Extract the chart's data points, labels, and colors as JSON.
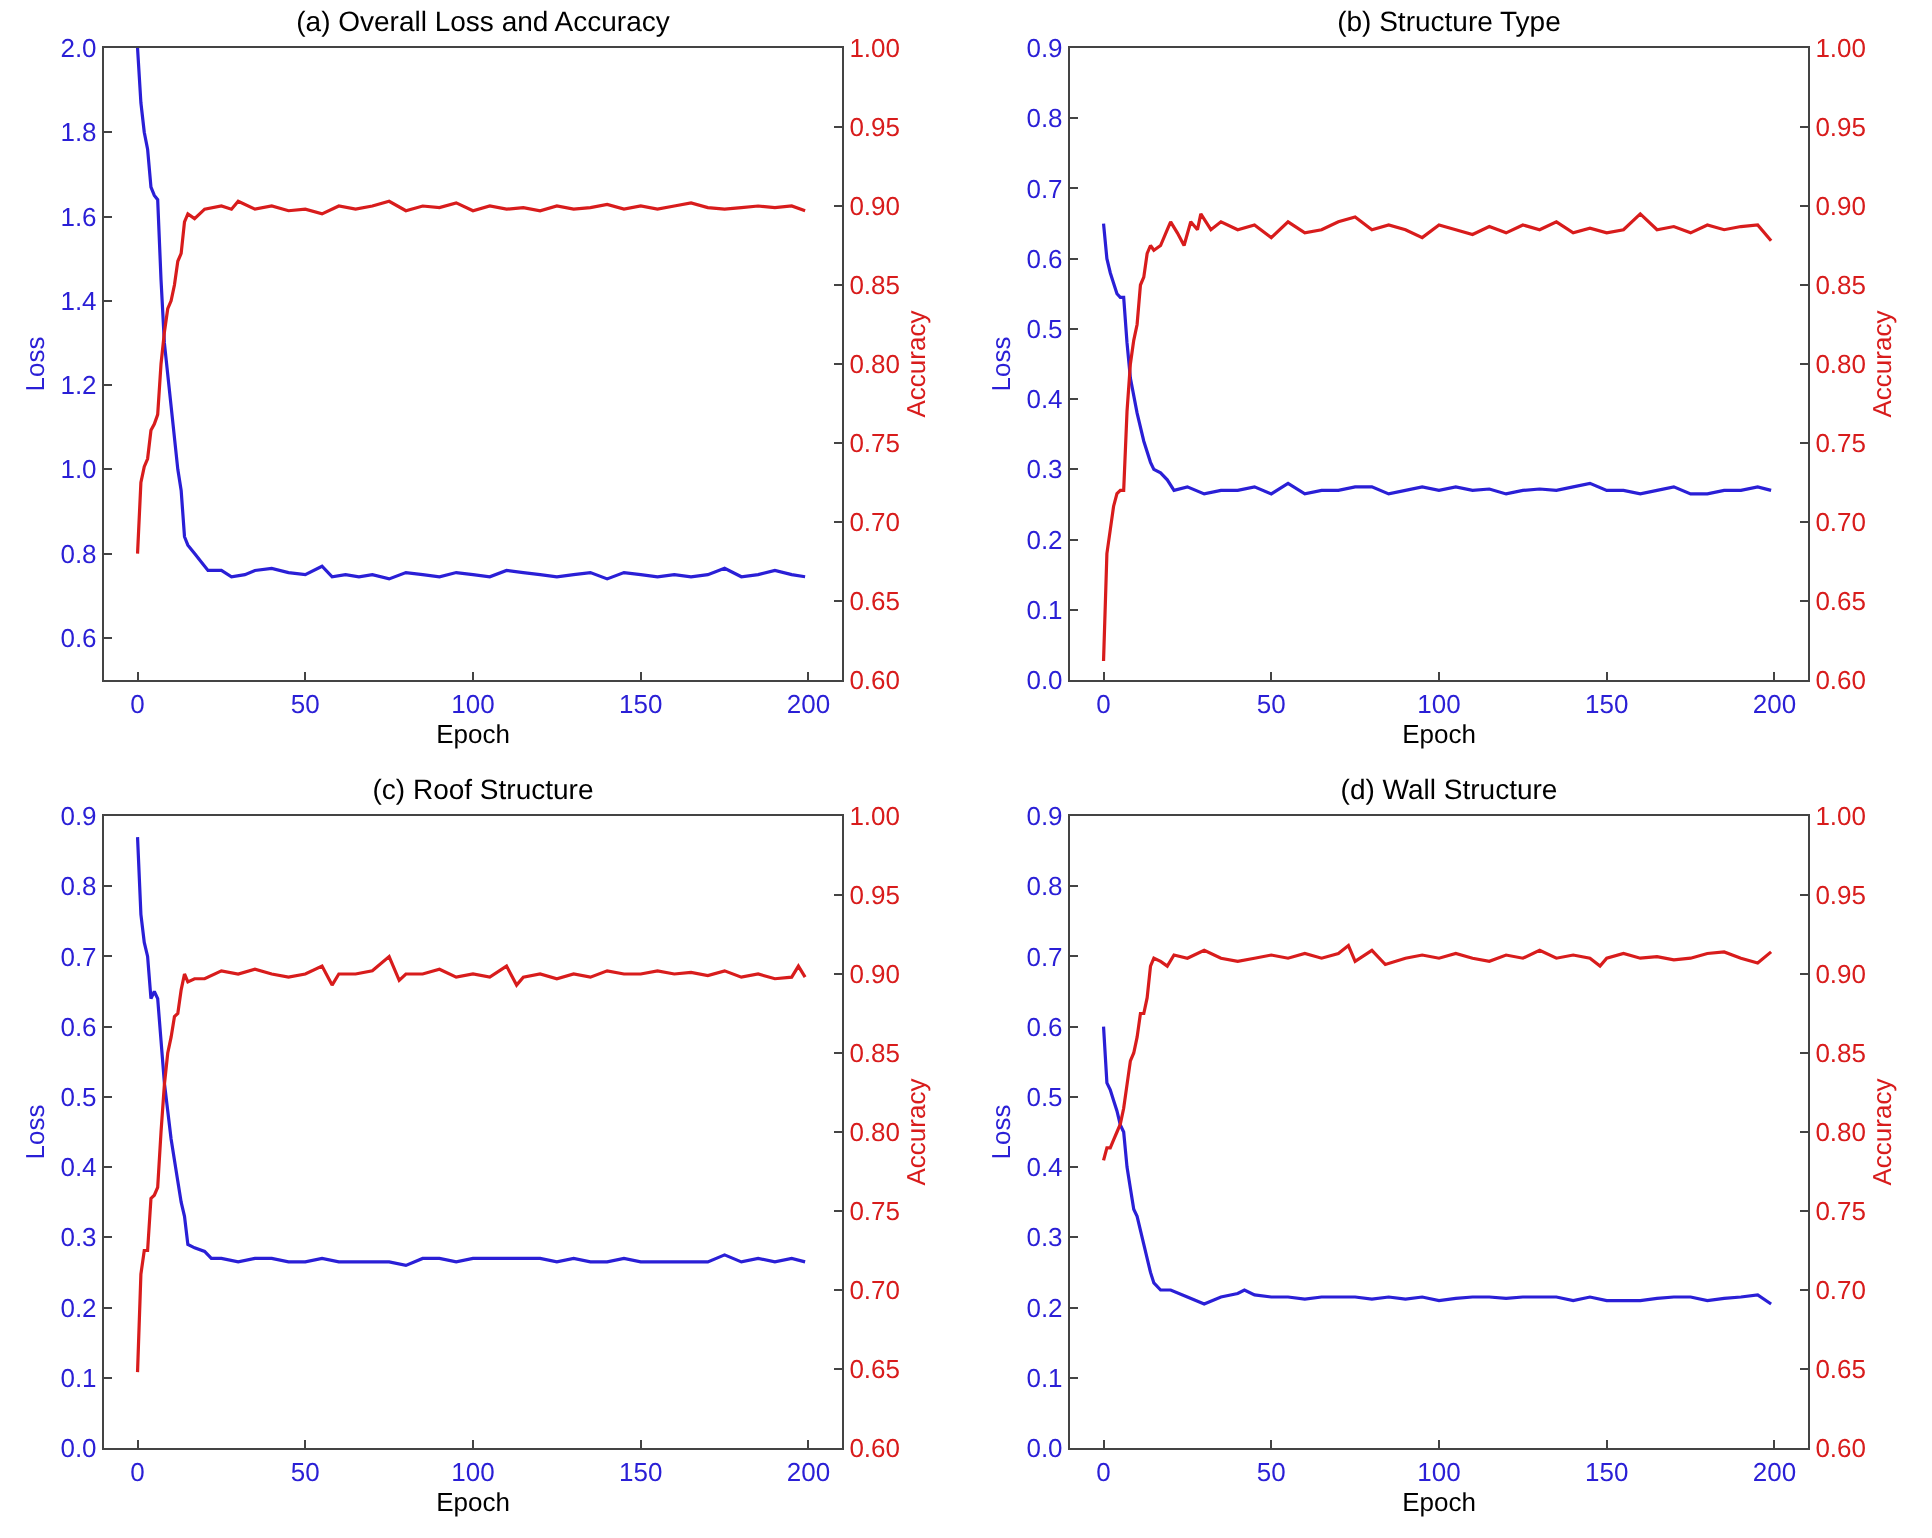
{
  "chart_data": [
    {
      "type": "line",
      "title": "(a) Overall Loss and Accuracy",
      "xlabel": "Epoch",
      "ylabel": "Loss",
      "y2label": "Accuracy",
      "xlim": [
        -10,
        210
      ],
      "xticks": [
        0,
        50,
        100,
        150,
        200
      ],
      "ylim": [
        0.5,
        2.0
      ],
      "yticks": [
        {
          "value": 0.6,
          "label": "0.6"
        },
        {
          "value": 0.8,
          "label": "0.8"
        },
        {
          "value": 1.0,
          "label": "1.0"
        },
        {
          "value": 1.2,
          "label": "1.2"
        },
        {
          "value": 1.4,
          "label": "1.4"
        },
        {
          "value": 1.6,
          "label": "1.6"
        },
        {
          "value": 1.8,
          "label": "1.8"
        },
        {
          "value": 2.0,
          "label": "2.0"
        }
      ],
      "y2lim": [
        0.6,
        1.0
      ],
      "y2ticks": [
        {
          "value": 0.6,
          "label": "0.60"
        },
        {
          "value": 0.65,
          "label": "0.65"
        },
        {
          "value": 0.7,
          "label": "0.70"
        },
        {
          "value": 0.75,
          "label": "0.75"
        },
        {
          "value": 0.8,
          "label": "0.80"
        },
        {
          "value": 0.85,
          "label": "0.85"
        },
        {
          "value": 0.9,
          "label": "0.90"
        },
        {
          "value": 0.95,
          "label": "0.95"
        },
        {
          "value": 1.0,
          "label": "1.00"
        }
      ],
      "series": [
        {
          "color": "#2a1fd6",
          "x": [
            0,
            1,
            2,
            3,
            4,
            5,
            6,
            7,
            8,
            10,
            12,
            13,
            14,
            15,
            17,
            19,
            21,
            25,
            28,
            32,
            35,
            40,
            45,
            50,
            55,
            58,
            62,
            66,
            70,
            75,
            80,
            85,
            90,
            95,
            100,
            105,
            110,
            115,
            120,
            125,
            130,
            135,
            140,
            145,
            150,
            155,
            160,
            165,
            170,
            175,
            180,
            185,
            190,
            195,
            199
          ],
          "values": [
            2.0,
            1.87,
            1.8,
            1.76,
            1.67,
            1.65,
            1.64,
            1.45,
            1.3,
            1.15,
            1.0,
            0.95,
            0.84,
            0.82,
            0.8,
            0.78,
            0.76,
            0.76,
            0.745,
            0.75,
            0.76,
            0.765,
            0.755,
            0.75,
            0.77,
            0.745,
            0.75,
            0.745,
            0.75,
            0.74,
            0.755,
            0.75,
            0.745,
            0.755,
            0.75,
            0.745,
            0.76,
            0.755,
            0.75,
            0.745,
            0.75,
            0.755,
            0.74,
            0.755,
            0.75,
            0.745,
            0.75,
            0.745,
            0.75,
            0.765,
            0.745,
            0.75,
            0.76,
            0.75,
            0.745
          ]
        },
        {
          "color": "#d81c1c",
          "axis": "y2",
          "x": [
            0,
            1,
            2,
            3,
            4,
            5,
            6,
            7,
            8,
            9,
            10,
            11,
            12,
            13,
            14,
            15,
            17,
            20,
            25,
            28,
            30,
            35,
            40,
            45,
            50,
            55,
            60,
            65,
            70,
            75,
            80,
            85,
            90,
            95,
            100,
            105,
            110,
            115,
            120,
            125,
            130,
            135,
            140,
            145,
            150,
            155,
            160,
            165,
            170,
            175,
            180,
            185,
            190,
            195,
            199
          ],
          "values": [
            0.68,
            0.725,
            0.735,
            0.74,
            0.758,
            0.762,
            0.768,
            0.8,
            0.82,
            0.835,
            0.84,
            0.85,
            0.865,
            0.87,
            0.89,
            0.895,
            0.892,
            0.898,
            0.9,
            0.898,
            0.903,
            0.898,
            0.9,
            0.897,
            0.898,
            0.895,
            0.9,
            0.898,
            0.9,
            0.903,
            0.897,
            0.9,
            0.899,
            0.902,
            0.897,
            0.9,
            0.898,
            0.899,
            0.897,
            0.9,
            0.898,
            0.899,
            0.901,
            0.898,
            0.9,
            0.898,
            0.9,
            0.902,
            0.899,
            0.898,
            0.899,
            0.9,
            0.899,
            0.9,
            0.897
          ]
        }
      ]
    },
    {
      "type": "line",
      "title": "(b) Structure Type",
      "xlabel": "Epoch",
      "ylabel": "Loss",
      "y2label": "Accuracy",
      "xlim": [
        -10,
        210
      ],
      "xticks": [
        0,
        50,
        100,
        150,
        200
      ],
      "ylim": [
        0,
        0.9
      ],
      "yticks": [
        {
          "value": 0,
          "label": "0.0"
        },
        0.1,
        0.2,
        0.3,
        0.4,
        0.5,
        0.6,
        0.7,
        0.8,
        0.9
      ],
      "y2lim": [
        0.6,
        1.0
      ],
      "y2ticks": [
        {
          "value": 0.6,
          "label": "0.60"
        },
        {
          "value": 0.65,
          "label": "0.65"
        },
        {
          "value": 0.7,
          "label": "0.70"
        },
        {
          "value": 0.75,
          "label": "0.75"
        },
        {
          "value": 0.8,
          "label": "0.80"
        },
        {
          "value": 0.85,
          "label": "0.85"
        },
        {
          "value": 0.9,
          "label": "0.90"
        },
        {
          "value": 0.95,
          "label": "0.95"
        },
        {
          "value": 1.0,
          "label": "1.00"
        }
      ],
      "series": [
        {
          "color": "#2a1fd6",
          "x": [
            0,
            1,
            2,
            3,
            4,
            5,
            6,
            7,
            8,
            10,
            12,
            14,
            15,
            17,
            19,
            21,
            25,
            30,
            35,
            40,
            45,
            50,
            55,
            60,
            65,
            70,
            75,
            80,
            85,
            90,
            95,
            100,
            105,
            110,
            115,
            120,
            125,
            130,
            135,
            140,
            145,
            150,
            155,
            160,
            165,
            170,
            175,
            180,
            185,
            190,
            195,
            199
          ],
          "values": [
            0.65,
            0.6,
            0.58,
            0.565,
            0.55,
            0.545,
            0.545,
            0.48,
            0.43,
            0.38,
            0.34,
            0.31,
            0.3,
            0.295,
            0.285,
            0.27,
            0.275,
            0.265,
            0.27,
            0.27,
            0.275,
            0.265,
            0.28,
            0.265,
            0.27,
            0.27,
            0.275,
            0.275,
            0.265,
            0.27,
            0.275,
            0.27,
            0.275,
            0.27,
            0.272,
            0.265,
            0.27,
            0.272,
            0.27,
            0.275,
            0.28,
            0.27,
            0.27,
            0.265,
            0.27,
            0.275,
            0.265,
            0.265,
            0.27,
            0.27,
            0.275,
            0.27
          ]
        },
        {
          "color": "#d81c1c",
          "axis": "y2",
          "x": [
            0,
            1,
            2,
            3,
            4,
            5,
            6,
            7,
            8,
            9,
            10,
            11,
            12,
            13,
            14,
            15,
            17,
            19,
            20,
            22,
            24,
            26,
            28,
            29,
            32,
            35,
            40,
            45,
            50,
            55,
            60,
            65,
            70,
            75,
            80,
            85,
            90,
            95,
            100,
            105,
            110,
            115,
            120,
            125,
            130,
            135,
            140,
            145,
            150,
            155,
            160,
            165,
            170,
            175,
            180,
            185,
            190,
            195,
            199
          ],
          "values": [
            0.612,
            0.68,
            0.695,
            0.71,
            0.718,
            0.72,
            0.72,
            0.77,
            0.8,
            0.815,
            0.825,
            0.85,
            0.855,
            0.87,
            0.875,
            0.872,
            0.875,
            0.885,
            0.89,
            0.883,
            0.875,
            0.89,
            0.885,
            0.895,
            0.885,
            0.89,
            0.885,
            0.888,
            0.88,
            0.89,
            0.883,
            0.885,
            0.89,
            0.893,
            0.885,
            0.888,
            0.885,
            0.88,
            0.888,
            0.885,
            0.882,
            0.887,
            0.883,
            0.888,
            0.885,
            0.89,
            0.883,
            0.886,
            0.883,
            0.885,
            0.895,
            0.885,
            0.887,
            0.883,
            0.888,
            0.885,
            0.887,
            0.888,
            0.878
          ]
        }
      ]
    },
    {
      "type": "line",
      "title": "(c) Roof Structure",
      "xlabel": "Epoch",
      "ylabel": "Loss",
      "y2label": "Accuracy",
      "xlim": [
        -10,
        210
      ],
      "xticks": [
        0,
        50,
        100,
        150,
        200
      ],
      "ylim": [
        0,
        0.9
      ],
      "yticks": [
        {
          "value": 0,
          "label": "0.0"
        },
        0.1,
        0.2,
        0.3,
        0.4,
        0.5,
        0.6,
        0.7,
        0.8,
        0.9
      ],
      "y2lim": [
        0.6,
        1.0
      ],
      "y2ticks": [
        {
          "value": 0.6,
          "label": "0.60"
        },
        {
          "value": 0.65,
          "label": "0.65"
        },
        {
          "value": 0.7,
          "label": "0.70"
        },
        {
          "value": 0.75,
          "label": "0.75"
        },
        {
          "value": 0.8,
          "label": "0.80"
        },
        {
          "value": 0.85,
          "label": "0.85"
        },
        {
          "value": 0.9,
          "label": "0.90"
        },
        {
          "value": 0.95,
          "label": "0.95"
        },
        {
          "value": 1.0,
          "label": "1.00"
        }
      ],
      "series": [
        {
          "color": "#2a1fd6",
          "x": [
            0,
            1,
            2,
            3,
            4,
            5,
            6,
            7,
            8,
            10,
            12,
            13,
            14,
            15,
            17,
            20,
            22,
            25,
            30,
            35,
            40,
            45,
            50,
            55,
            60,
            65,
            70,
            75,
            80,
            85,
            90,
            95,
            100,
            105,
            110,
            115,
            120,
            125,
            130,
            135,
            140,
            145,
            150,
            155,
            160,
            165,
            170,
            175,
            180,
            185,
            190,
            195,
            199
          ],
          "values": [
            0.87,
            0.76,
            0.72,
            0.7,
            0.64,
            0.65,
            0.64,
            0.58,
            0.52,
            0.44,
            0.38,
            0.35,
            0.33,
            0.29,
            0.285,
            0.28,
            0.27,
            0.27,
            0.265,
            0.27,
            0.27,
            0.265,
            0.265,
            0.27,
            0.265,
            0.265,
            0.265,
            0.265,
            0.26,
            0.27,
            0.27,
            0.265,
            0.27,
            0.27,
            0.27,
            0.27,
            0.27,
            0.265,
            0.27,
            0.265,
            0.265,
            0.27,
            0.265,
            0.265,
            0.265,
            0.265,
            0.265,
            0.275,
            0.265,
            0.27,
            0.265,
            0.27,
            0.265
          ]
        },
        {
          "color": "#d81c1c",
          "axis": "y2",
          "x": [
            0,
            1,
            2,
            3,
            4,
            5,
            6,
            7,
            8,
            9,
            10,
            11,
            12,
            13,
            14,
            15,
            17,
            20,
            25,
            30,
            35,
            40,
            45,
            50,
            55,
            58,
            60,
            65,
            70,
            75,
            78,
            80,
            85,
            90,
            95,
            100,
            105,
            110,
            113,
            115,
            120,
            125,
            130,
            135,
            140,
            145,
            150,
            155,
            160,
            165,
            170,
            175,
            180,
            185,
            190,
            195,
            197,
            199
          ],
          "values": [
            0.648,
            0.71,
            0.725,
            0.725,
            0.758,
            0.76,
            0.765,
            0.8,
            0.83,
            0.85,
            0.86,
            0.873,
            0.875,
            0.89,
            0.9,
            0.895,
            0.897,
            0.897,
            0.902,
            0.9,
            0.903,
            0.9,
            0.898,
            0.9,
            0.905,
            0.893,
            0.9,
            0.9,
            0.902,
            0.911,
            0.896,
            0.9,
            0.9,
            0.903,
            0.898,
            0.9,
            0.898,
            0.905,
            0.893,
            0.898,
            0.9,
            0.897,
            0.9,
            0.898,
            0.902,
            0.9,
            0.9,
            0.902,
            0.9,
            0.901,
            0.899,
            0.902,
            0.898,
            0.9,
            0.897,
            0.898,
            0.905,
            0.898
          ]
        }
      ]
    },
    {
      "type": "line",
      "title": "(d) Wall Structure",
      "xlabel": "Epoch",
      "ylabel": "Loss",
      "y2label": "Accuracy",
      "xlim": [
        -10,
        210
      ],
      "xticks": [
        0,
        50,
        100,
        150,
        200
      ],
      "ylim": [
        0,
        0.9
      ],
      "yticks": [
        {
          "value": 0,
          "label": "0.0"
        },
        0.1,
        0.2,
        0.3,
        0.4,
        0.5,
        0.6,
        0.7,
        0.8,
        0.9
      ],
      "y2lim": [
        0.6,
        1.0
      ],
      "y2ticks": [
        {
          "value": 0.6,
          "label": "0.60"
        },
        {
          "value": 0.65,
          "label": "0.65"
        },
        {
          "value": 0.7,
          "label": "0.70"
        },
        {
          "value": 0.75,
          "label": "0.75"
        },
        {
          "value": 0.8,
          "label": "0.80"
        },
        {
          "value": 0.85,
          "label": "0.85"
        },
        {
          "value": 0.9,
          "label": "0.90"
        },
        {
          "value": 0.95,
          "label": "0.95"
        },
        {
          "value": 1.0,
          "label": "1.00"
        }
      ],
      "series": [
        {
          "color": "#2a1fd6",
          "x": [
            0,
            1,
            2,
            3,
            4,
            5,
            6,
            7,
            8,
            9,
            10,
            12,
            14,
            15,
            17,
            20,
            25,
            30,
            35,
            40,
            42,
            45,
            50,
            55,
            60,
            65,
            70,
            75,
            80,
            85,
            90,
            95,
            100,
            105,
            110,
            115,
            120,
            125,
            130,
            135,
            140,
            145,
            150,
            155,
            160,
            165,
            170,
            175,
            180,
            185,
            190,
            195,
            199
          ],
          "values": [
            0.6,
            0.52,
            0.51,
            0.495,
            0.48,
            0.46,
            0.45,
            0.4,
            0.37,
            0.34,
            0.33,
            0.29,
            0.25,
            0.235,
            0.225,
            0.225,
            0.215,
            0.205,
            0.215,
            0.22,
            0.225,
            0.218,
            0.215,
            0.215,
            0.212,
            0.215,
            0.215,
            0.215,
            0.212,
            0.215,
            0.212,
            0.215,
            0.21,
            0.213,
            0.215,
            0.215,
            0.213,
            0.215,
            0.215,
            0.215,
            0.21,
            0.215,
            0.21,
            0.21,
            0.21,
            0.213,
            0.215,
            0.215,
            0.21,
            0.213,
            0.215,
            0.218,
            0.205
          ]
        },
        {
          "color": "#d81c1c",
          "axis": "y2",
          "x": [
            0,
            1,
            2,
            3,
            4,
            5,
            6,
            7,
            8,
            9,
            10,
            11,
            12,
            13,
            14,
            15,
            17,
            19,
            21,
            25,
            30,
            35,
            40,
            45,
            50,
            55,
            60,
            65,
            70,
            73,
            75,
            80,
            84,
            90,
            95,
            100,
            105,
            110,
            115,
            120,
            125,
            130,
            135,
            140,
            145,
            148,
            150,
            155,
            160,
            165,
            170,
            175,
            180,
            185,
            190,
            195,
            199
          ],
          "values": [
            0.782,
            0.79,
            0.79,
            0.795,
            0.8,
            0.805,
            0.815,
            0.83,
            0.845,
            0.85,
            0.86,
            0.875,
            0.875,
            0.885,
            0.905,
            0.91,
            0.908,
            0.905,
            0.912,
            0.91,
            0.915,
            0.91,
            0.908,
            0.91,
            0.912,
            0.91,
            0.913,
            0.91,
            0.913,
            0.918,
            0.908,
            0.915,
            0.906,
            0.91,
            0.912,
            0.91,
            0.913,
            0.91,
            0.908,
            0.912,
            0.91,
            0.915,
            0.91,
            0.912,
            0.91,
            0.905,
            0.91,
            0.913,
            0.91,
            0.911,
            0.909,
            0.91,
            0.913,
            0.914,
            0.91,
            0.907,
            0.914
          ]
        }
      ]
    }
  ]
}
